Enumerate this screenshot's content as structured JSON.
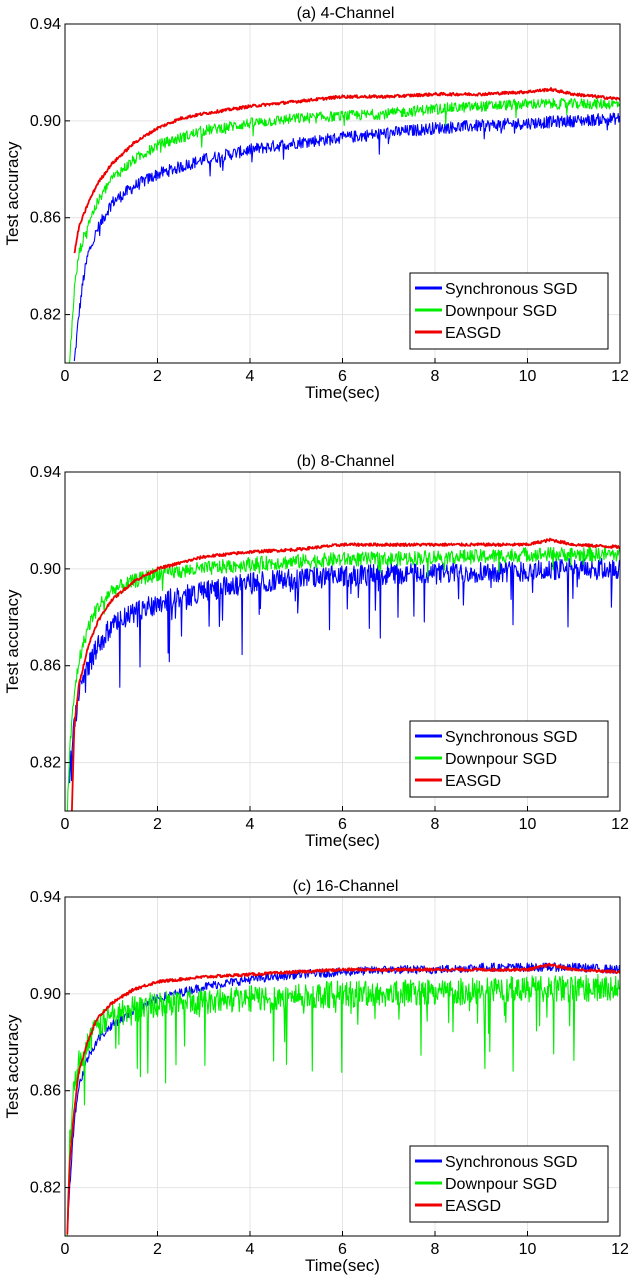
{
  "chart_data": [
    {
      "type": "line",
      "title": "(a) 4-Channel",
      "xlabel": "Time(sec)",
      "ylabel": "Test accuracy",
      "xlim": [
        0,
        12
      ],
      "ylim": [
        0.8,
        0.94
      ],
      "xticks": [
        0,
        2,
        4,
        6,
        8,
        10,
        12
      ],
      "yticks": [
        0.82,
        0.86,
        0.9,
        0.94
      ],
      "yticklabels": [
        "0.82",
        "0.86",
        "0.90",
        "0.94"
      ],
      "grid": true,
      "legend_position": "bottom-right",
      "series": [
        {
          "name": "Synchronous SGD",
          "color": "#0000ff",
          "noise": 0.0025,
          "x": [
            0.2,
            0.25,
            0.3,
            0.4,
            0.5,
            0.7,
            1,
            1.5,
            2,
            3,
            4,
            5,
            6,
            7,
            8,
            9,
            10,
            11,
            12
          ],
          "y": [
            0.8,
            0.81,
            0.82,
            0.835,
            0.845,
            0.855,
            0.866,
            0.873,
            0.878,
            0.884,
            0.888,
            0.891,
            0.893,
            0.895,
            0.897,
            0.898,
            0.899,
            0.9,
            0.901
          ]
        },
        {
          "name": "Downpour SGD",
          "color": "#00ee00",
          "noise": 0.0022,
          "x": [
            0.1,
            0.15,
            0.2,
            0.3,
            0.5,
            0.7,
            1,
            1.5,
            2,
            3,
            4,
            5,
            6,
            7,
            8,
            9,
            10,
            11,
            12
          ],
          "y": [
            0.8,
            0.815,
            0.83,
            0.845,
            0.858,
            0.866,
            0.876,
            0.884,
            0.89,
            0.896,
            0.899,
            0.901,
            0.902,
            0.903,
            0.905,
            0.906,
            0.907,
            0.907,
            0.907
          ]
        },
        {
          "name": "EASGD",
          "color": "#ee0000",
          "noise": 0.0006,
          "x": [
            0.2,
            0.3,
            0.5,
            0.7,
            1,
            1.5,
            2,
            2.5,
            3,
            4,
            5,
            6,
            7,
            8,
            9,
            10,
            10.5,
            11,
            12
          ],
          "y": [
            0.845,
            0.856,
            0.866,
            0.874,
            0.882,
            0.891,
            0.897,
            0.901,
            0.903,
            0.906,
            0.908,
            0.91,
            0.91,
            0.911,
            0.911,
            0.912,
            0.913,
            0.911,
            0.909
          ]
        }
      ]
    },
    {
      "type": "line",
      "title": "(b) 8-Channel",
      "xlabel": "Time(sec)",
      "ylabel": "Test accuracy",
      "xlim": [
        0,
        12
      ],
      "ylim": [
        0.8,
        0.94
      ],
      "xticks": [
        0,
        2,
        4,
        6,
        8,
        10,
        12
      ],
      "yticks": [
        0.82,
        0.86,
        0.9,
        0.94
      ],
      "yticklabels": [
        "0.82",
        "0.86",
        "0.90",
        "0.94"
      ],
      "grid": true,
      "legend_position": "bottom-right",
      "series": [
        {
          "name": "Synchronous SGD",
          "color": "#0000ff",
          "noise": 0.0045,
          "x": [
            0.1,
            0.2,
            0.3,
            0.5,
            0.7,
            1,
            1.5,
            2,
            3,
            4,
            5,
            6,
            7,
            8,
            9,
            10,
            11,
            12
          ],
          "y": [
            0.815,
            0.835,
            0.848,
            0.86,
            0.868,
            0.876,
            0.882,
            0.886,
            0.891,
            0.894,
            0.896,
            0.897,
            0.898,
            0.898,
            0.899,
            0.899,
            0.9,
            0.9
          ]
        },
        {
          "name": "Downpour SGD",
          "color": "#00ee00",
          "noise": 0.003,
          "x": [
            0.05,
            0.1,
            0.2,
            0.3,
            0.5,
            0.7,
            1,
            1.5,
            2,
            3,
            4,
            5,
            6,
            7,
            8,
            9,
            10,
            11,
            12
          ],
          "y": [
            0.8,
            0.825,
            0.848,
            0.862,
            0.876,
            0.884,
            0.891,
            0.895,
            0.898,
            0.9,
            0.902,
            0.903,
            0.904,
            0.904,
            0.905,
            0.905,
            0.906,
            0.906,
            0.906
          ]
        },
        {
          "name": "EASGD",
          "color": "#ee0000",
          "noise": 0.0006,
          "x": [
            0.15,
            0.2,
            0.3,
            0.5,
            0.7,
            1,
            1.5,
            2,
            3,
            4,
            5,
            6,
            7,
            8,
            9,
            10,
            10.5,
            11,
            12
          ],
          "y": [
            0.8,
            0.835,
            0.852,
            0.868,
            0.878,
            0.887,
            0.895,
            0.9,
            0.905,
            0.907,
            0.908,
            0.91,
            0.91,
            0.91,
            0.91,
            0.91,
            0.912,
            0.91,
            0.909
          ]
        }
      ]
    },
    {
      "type": "line",
      "title": "(c) 16-Channel",
      "xlabel": "Time(sec)",
      "ylabel": "Test accuracy",
      "xlim": [
        0,
        12
      ],
      "ylim": [
        0.8,
        0.94
      ],
      "xticks": [
        0,
        2,
        4,
        6,
        8,
        10,
        12
      ],
      "yticks": [
        0.82,
        0.86,
        0.9,
        0.94
      ],
      "yticklabels": [
        "0.82",
        "0.86",
        "0.90",
        "0.94"
      ],
      "grid": true,
      "legend_position": "bottom-right",
      "series": [
        {
          "name": "Synchronous SGD",
          "color": "#0000ff",
          "noise": 0.0018,
          "x": [
            0.05,
            0.1,
            0.2,
            0.3,
            0.5,
            0.7,
            1,
            1.5,
            2,
            3,
            4,
            5,
            6,
            7,
            8,
            9,
            10,
            11,
            12
          ],
          "y": [
            0.8,
            0.82,
            0.848,
            0.862,
            0.874,
            0.881,
            0.887,
            0.893,
            0.898,
            0.903,
            0.906,
            0.908,
            0.909,
            0.91,
            0.91,
            0.911,
            0.911,
            0.911,
            0.91
          ]
        },
        {
          "name": "Downpour SGD",
          "color": "#00ee00",
          "noise": 0.0055,
          "x": [
            0.05,
            0.1,
            0.2,
            0.3,
            0.5,
            0.7,
            1,
            1.5,
            2,
            3,
            4,
            5,
            6,
            7,
            8,
            9,
            10,
            11,
            12
          ],
          "y": [
            0.8,
            0.84,
            0.862,
            0.872,
            0.88,
            0.886,
            0.891,
            0.894,
            0.896,
            0.897,
            0.898,
            0.899,
            0.9,
            0.9,
            0.901,
            0.901,
            0.902,
            0.902,
            0.903
          ]
        },
        {
          "name": "EASGD",
          "color": "#ee0000",
          "noise": 0.0006,
          "x": [
            0.05,
            0.1,
            0.2,
            0.3,
            0.5,
            0.7,
            1,
            1.5,
            2,
            3,
            4,
            5,
            6,
            7,
            8,
            9,
            10,
            10.5,
            11,
            12
          ],
          "y": [
            0.8,
            0.83,
            0.852,
            0.868,
            0.881,
            0.89,
            0.896,
            0.902,
            0.905,
            0.907,
            0.908,
            0.909,
            0.91,
            0.91,
            0.91,
            0.91,
            0.91,
            0.912,
            0.91,
            0.909
          ]
        }
      ]
    }
  ]
}
